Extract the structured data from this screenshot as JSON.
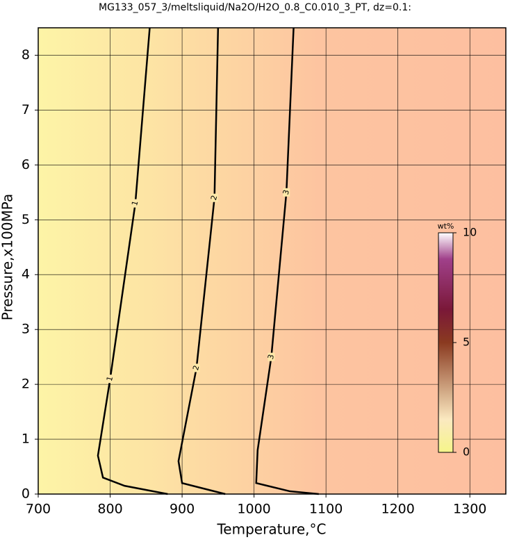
{
  "chart_data": {
    "type": "contour",
    "title": "MG133_057_3/meltsliquid/Na2O/H2O_0.8_C0.010_3_PT, dz=0.1:",
    "xlabel": "Temperature,°C",
    "ylabel": "Pressure,x100MPa",
    "xlim": [
      700,
      1350
    ],
    "ylim": [
      0,
      8.5
    ],
    "xticks": [
      700,
      800,
      900,
      1000,
      1100,
      1200,
      1300
    ],
    "yticks": [
      0,
      1,
      2,
      3,
      4,
      5,
      6,
      7,
      8
    ],
    "grid": true,
    "contours": [
      {
        "level": 1,
        "x": [
          855,
          835,
          800,
          783,
          790,
          820,
          880
        ],
        "y": [
          8.5,
          5.3,
          2.1,
          0.7,
          0.3,
          0.15,
          0
        ]
      },
      {
        "level": 2,
        "x": [
          950,
          945,
          920,
          895,
          900,
          930,
          960
        ],
        "y": [
          8.5,
          5.4,
          2.3,
          0.6,
          0.2,
          0.1,
          0
        ]
      },
      {
        "level": 3,
        "x": [
          1055,
          1045,
          1024,
          1005,
          1003,
          1050,
          1090
        ],
        "y": [
          8.5,
          5.5,
          2.5,
          0.8,
          0.2,
          0.05,
          0
        ]
      }
    ],
    "colorbar": {
      "label": "wt%",
      "lim": [
        0,
        10
      ],
      "ticks": [
        0,
        5,
        10
      ]
    }
  }
}
